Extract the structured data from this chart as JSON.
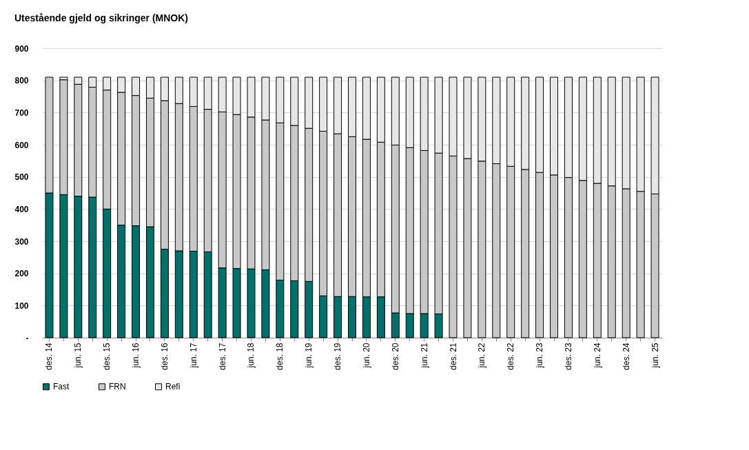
{
  "chart_data": {
    "type": "bar",
    "title": "Utestående gjeld og sikringer (MNOK)",
    "stacked": true,
    "categories": [
      "des. 14",
      null,
      "jun. 15",
      null,
      "des. 15",
      null,
      "jun. 16",
      null,
      "des. 16",
      null,
      "jun. 17",
      null,
      "des. 17",
      null,
      "jun. 18",
      null,
      "des. 18",
      null,
      "jun. 19",
      null,
      "des. 19",
      null,
      "jun. 20",
      null,
      "des. 20",
      null,
      "jun. 21",
      null,
      "des. 21",
      null,
      "jun. 22",
      null,
      "des. 22",
      null,
      "jun. 23",
      null,
      "des. 23",
      null,
      "jun. 24",
      null,
      "des. 24",
      null,
      "jun. 25"
    ],
    "series": [
      {
        "name": "Fast",
        "color": "#00706b",
        "values": [
          450,
          445,
          440,
          437,
          400,
          350,
          348,
          345,
          275,
          270,
          269,
          267,
          217,
          215,
          214,
          211,
          179,
          177,
          175,
          130,
          128,
          128,
          127,
          127,
          77,
          75,
          75,
          74,
          null,
          null,
          null,
          null,
          null,
          null,
          null,
          null,
          null,
          null,
          null,
          null,
          null,
          null,
          null
        ]
      },
      {
        "name": "FRN",
        "color": "#c8c8c8",
        "values": [
          360,
          357,
          348,
          342,
          370,
          413,
          405,
          400,
          462,
          458,
          450,
          443,
          485,
          479,
          472,
          466,
          489,
          483,
          476,
          512,
          506,
          497,
          490,
          481,
          522,
          516,
          507,
          500,
          565,
          557,
          549,
          541,
          533,
          523,
          514,
          506,
          498,
          489,
          480,
          472,
          463,
          455,
          447
        ]
      },
      {
        "name": "Refi",
        "color": "#e6e6e6",
        "values": [
          null,
          8,
          22,
          31,
          40,
          47,
          57,
          65,
          73,
          82,
          91,
          100,
          108,
          116,
          124,
          133,
          142,
          150,
          159,
          168,
          176,
          185,
          193,
          202,
          211,
          219,
          228,
          236,
          245,
          253,
          261,
          269,
          277,
          287,
          296,
          304,
          312,
          321,
          330,
          338,
          347,
          355,
          363
        ]
      }
    ],
    "ylim": [
      0,
      900
    ],
    "yticks": [
      {
        "value": 0,
        "label": "-"
      },
      100,
      200,
      300,
      400,
      500,
      600,
      700,
      800,
      900
    ],
    "grid": "y",
    "legend": "bottom"
  }
}
